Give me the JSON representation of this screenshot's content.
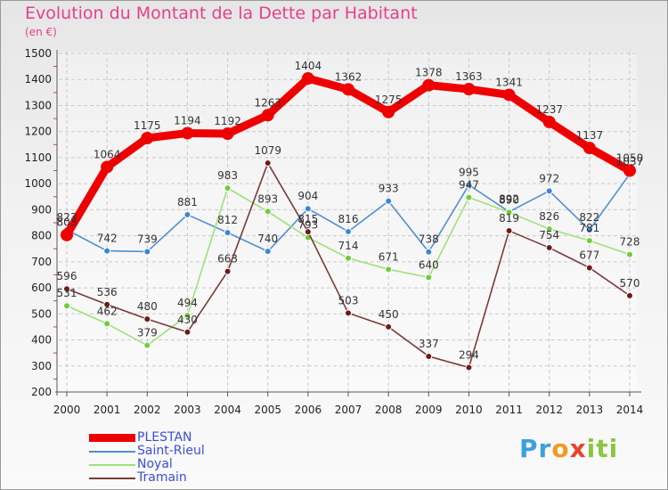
{
  "title": "Evolution du Montant de la Dette par Habitant",
  "unit": "(en €)",
  "brand": {
    "letters": [
      "P",
      "r",
      "o",
      "x",
      "i",
      "t",
      "i"
    ],
    "colors": [
      "#3da0dc",
      "#3da0dc",
      "#f29a1e",
      "#e8432e",
      "#8cc63f",
      "#8cc63f",
      "#8cc63f"
    ]
  },
  "chart_data": {
    "type": "line",
    "title": "Evolution du Montant de la Dette par Habitant",
    "ylabel": "(en €)",
    "xlabel": "",
    "ylim": [
      200,
      1500
    ],
    "yticks": [
      200,
      300,
      400,
      500,
      600,
      700,
      800,
      900,
      1000,
      1100,
      1200,
      1300,
      1400,
      1500
    ],
    "x": [
      "2000",
      "2001",
      "2002",
      "2003",
      "2004",
      "2005",
      "2006",
      "2007",
      "2008",
      "2009",
      "2010",
      "2011",
      "2012",
      "2013",
      "2014"
    ],
    "series": [
      {
        "name": "PLESTAN",
        "color": "#ee0000",
        "thick": true,
        "values": [
          803,
          1064,
          1175,
          1194,
          1192,
          1263,
          1404,
          1362,
          1275,
          1378,
          1363,
          1341,
          1237,
          1137,
          1050
        ]
      },
      {
        "name": "Saint-Rieul",
        "color": "#4f8fd0",
        "point": "#3a86d4",
        "values": [
          823,
          742,
          739,
          881,
          812,
          740,
          904,
          816,
          933,
          738,
          995,
          892,
          972,
          822,
          1037
        ]
      },
      {
        "name": "Noyal",
        "color": "#9fe07a",
        "point": "#6fcc3c",
        "values": [
          531,
          462,
          379,
          494,
          983,
          893,
          793,
          714,
          671,
          640,
          947,
          890,
          826,
          781,
          728
        ]
      },
      {
        "name": "Tramain",
        "color": "#7a3a3a",
        "point": "#6e1a1a",
        "values": [
          596,
          536,
          480,
          430,
          663,
          1079,
          815,
          503,
          450,
          337,
          294,
          819,
          754,
          677,
          570
        ]
      }
    ]
  }
}
